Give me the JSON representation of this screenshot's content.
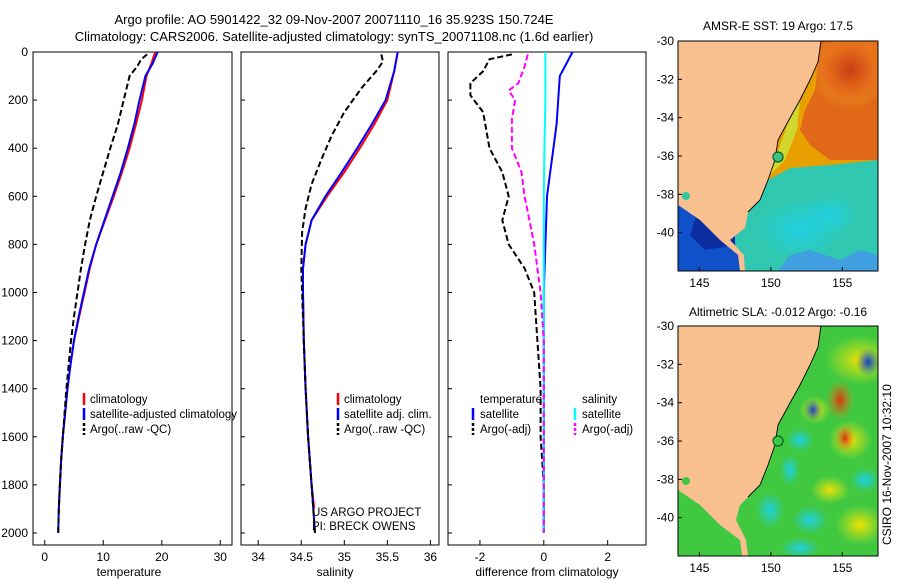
{
  "header": {
    "line1": "Argo profile: AO 5901422_32 09-Nov-2007 20071110_16 35.923S 150.724E",
    "line2": "Climatology: CARS2006. Satellite-adjusted climatology: synTS_20071108.nc (1.6d earlier)"
  },
  "side_stamp": "CSIRO 16-Nov-2007 10:32:10",
  "colors": {
    "climatology": "#ff0000",
    "satellite": "#0000ff",
    "argo": "#000000",
    "salinity_satellite": "#00ffff",
    "salinity_argo": "#ff00ff",
    "land": "#f7c08e"
  },
  "chart_data": [
    {
      "type": "line",
      "xlabel": "temperature",
      "xlim": [
        -2,
        32
      ],
      "ylim": [
        2050,
        0
      ],
      "xticks": [
        "0",
        "10",
        "20",
        "30"
      ],
      "yticks": [
        "0",
        "200",
        "400",
        "600",
        "800",
        "1000",
        "1200",
        "1400",
        "1600",
        "1800",
        "2000"
      ],
      "legend": [
        "climatology",
        "satellite-adjusted climatology",
        "Argo(..raw -QC)"
      ],
      "series": [
        {
          "name": "climatology",
          "points": [
            [
              18.9,
              0
            ],
            [
              18.2,
              50
            ],
            [
              17.4,
              100
            ],
            [
              16.6,
              200
            ],
            [
              15.6,
              300
            ],
            [
              14.5,
              400
            ],
            [
              13.2,
              500
            ],
            [
              11.8,
              600
            ],
            [
              10.3,
              700
            ],
            [
              8.8,
              800
            ],
            [
              7.7,
              900
            ],
            [
              6.8,
              1000
            ],
            [
              5.9,
              1100
            ],
            [
              5.0,
              1200
            ],
            [
              4.4,
              1300
            ],
            [
              3.9,
              1400
            ],
            [
              3.5,
              1500
            ],
            [
              3.1,
              1600
            ],
            [
              2.8,
              1700
            ],
            [
              2.6,
              1800
            ],
            [
              2.4,
              1900
            ]
          ]
        },
        {
          "name": "satellite-adjusted climatology",
          "points": [
            [
              19.3,
              0
            ],
            [
              18.4,
              50
            ],
            [
              17.2,
              100
            ],
            [
              16.2,
              200
            ],
            [
              15.3,
              300
            ],
            [
              14.2,
              400
            ],
            [
              13.0,
              500
            ],
            [
              11.6,
              600
            ],
            [
              10.2,
              700
            ],
            [
              8.8,
              800
            ],
            [
              7.6,
              900
            ],
            [
              6.7,
              1000
            ],
            [
              5.8,
              1100
            ],
            [
              5.0,
              1200
            ],
            [
              4.4,
              1300
            ],
            [
              3.9,
              1400
            ],
            [
              3.5,
              1500
            ],
            [
              3.1,
              1600
            ],
            [
              2.8,
              1700
            ],
            [
              2.6,
              1800
            ],
            [
              2.4,
              1900
            ],
            [
              2.3,
              2000
            ]
          ]
        },
        {
          "name": "Argo(..raw -QC)",
          "points": [
            [
              17.5,
              10
            ],
            [
              16.5,
              30
            ],
            [
              15.8,
              60
            ],
            [
              14.5,
              100
            ],
            [
              13.5,
              200
            ],
            [
              12.5,
              300
            ],
            [
              11.2,
              400
            ],
            [
              10.0,
              500
            ],
            [
              8.8,
              600
            ],
            [
              7.7,
              700
            ],
            [
              6.9,
              800
            ],
            [
              6.2,
              900
            ],
            [
              5.6,
              1000
            ],
            [
              5.0,
              1100
            ],
            [
              4.5,
              1200
            ],
            [
              4.1,
              1300
            ],
            [
              3.7,
              1400
            ],
            [
              3.4,
              1500
            ],
            [
              3.1,
              1600
            ],
            [
              2.8,
              1700
            ],
            [
              2.6,
              1800
            ],
            [
              2.4,
              1900
            ],
            [
              2.3,
              2000
            ]
          ]
        }
      ]
    },
    {
      "type": "line",
      "xlabel": "salinity",
      "xlim": [
        33.8,
        36.1
      ],
      "ylim": [
        2050,
        0
      ],
      "xticks": [
        "34",
        "34.5",
        "35",
        "35.5",
        "36"
      ],
      "legend": [
        "climatology",
        "satellite adj. clim.",
        "Argo(..raw -QC)"
      ],
      "annotation": [
        "US ARGO PROJECT",
        "PI: BRECK OWENS"
      ],
      "series": [
        {
          "name": "climatology",
          "points": [
            [
              35.62,
              0
            ],
            [
              35.58,
              80
            ],
            [
              35.5,
              200
            ],
            [
              35.35,
              300
            ],
            [
              35.18,
              400
            ],
            [
              35.0,
              500
            ],
            [
              34.8,
              600
            ],
            [
              34.62,
              700
            ],
            [
              34.55,
              800
            ],
            [
              34.52,
              900
            ],
            [
              34.52,
              1000
            ],
            [
              34.53,
              1200
            ],
            [
              34.55,
              1400
            ],
            [
              34.58,
              1600
            ],
            [
              34.62,
              1800
            ],
            [
              34.65,
              1900
            ]
          ]
        },
        {
          "name": "satellite adj. clim.",
          "points": [
            [
              35.62,
              0
            ],
            [
              35.58,
              80
            ],
            [
              35.48,
              200
            ],
            [
              35.32,
              300
            ],
            [
              35.15,
              400
            ],
            [
              34.97,
              500
            ],
            [
              34.78,
              600
            ],
            [
              34.62,
              700
            ],
            [
              34.55,
              800
            ],
            [
              34.52,
              900
            ],
            [
              34.52,
              1000
            ],
            [
              34.53,
              1200
            ],
            [
              34.55,
              1400
            ],
            [
              34.58,
              1600
            ],
            [
              34.62,
              1800
            ],
            [
              34.66,
              2000
            ]
          ]
        },
        {
          "name": "Argo(..raw -QC)",
          "points": [
            [
              35.43,
              10
            ],
            [
              35.45,
              40
            ],
            [
              35.37,
              80
            ],
            [
              35.2,
              150
            ],
            [
              35.0,
              250
            ],
            [
              34.85,
              350
            ],
            [
              34.73,
              450
            ],
            [
              34.62,
              550
            ],
            [
              34.55,
              650
            ],
            [
              34.51,
              750
            ],
            [
              34.5,
              900
            ],
            [
              34.51,
              1000
            ],
            [
              34.53,
              1200
            ],
            [
              34.55,
              1400
            ],
            [
              34.58,
              1600
            ],
            [
              34.62,
              1800
            ],
            [
              34.66,
              2000
            ]
          ]
        }
      ]
    },
    {
      "type": "line",
      "xlabel": "difference from climatology",
      "xlim": [
        -3,
        3.2
      ],
      "ylim": [
        2050,
        0
      ],
      "xticks": [
        "-2",
        "0",
        "2"
      ],
      "legend": [
        "temperature",
        "satellite",
        "Argo(-adj)",
        "salinity",
        "satellite",
        "Argo(-adj)"
      ],
      "series": [
        {
          "name": "temperature satellite",
          "points": [
            [
              0.9,
              0
            ],
            [
              0.7,
              50
            ],
            [
              0.5,
              100
            ],
            [
              0.45,
              200
            ],
            [
              0.4,
              300
            ],
            [
              0.3,
              400
            ],
            [
              0.2,
              500
            ],
            [
              0.1,
              600
            ],
            [
              0.05,
              800
            ],
            [
              0.0,
              1000
            ],
            [
              0.0,
              1500
            ],
            [
              0.0,
              2000
            ]
          ]
        },
        {
          "name": "temperature Argo(-adj)",
          "points": [
            [
              -1.0,
              10
            ],
            [
              -1.7,
              30
            ],
            [
              -1.9,
              80
            ],
            [
              -2.3,
              130
            ],
            [
              -2.3,
              180
            ],
            [
              -1.9,
              250
            ],
            [
              -1.7,
              400
            ],
            [
              -1.3,
              500
            ],
            [
              -1.1,
              600
            ],
            [
              -1.3,
              700
            ],
            [
              -1.1,
              800
            ],
            [
              -0.6,
              900
            ],
            [
              -0.3,
              1000
            ],
            [
              -0.2,
              1200
            ],
            [
              -0.1,
              1400
            ],
            [
              -0.1,
              1600
            ],
            [
              0.0,
              1800
            ],
            [
              0.0,
              2000
            ]
          ]
        },
        {
          "name": "salinity satellite",
          "points": [
            [
              0.05,
              0
            ],
            [
              0.05,
              200
            ],
            [
              0.02,
              400
            ],
            [
              0.0,
              600
            ],
            [
              0.0,
              1000
            ],
            [
              0.0,
              1500
            ],
            [
              0.0,
              2000
            ]
          ]
        },
        {
          "name": "salinity Argo(-adj)",
          "points": [
            [
              -0.5,
              10
            ],
            [
              -0.6,
              60
            ],
            [
              -0.8,
              130
            ],
            [
              -1.1,
              160
            ],
            [
              -0.9,
              200
            ],
            [
              -1.0,
              280
            ],
            [
              -1.0,
              400
            ],
            [
              -0.7,
              500
            ],
            [
              -0.6,
              600
            ],
            [
              -0.45,
              700
            ],
            [
              -0.3,
              800
            ],
            [
              -0.2,
              900
            ],
            [
              -0.1,
              1000
            ],
            [
              0.0,
              1200
            ],
            [
              0.0,
              1500
            ],
            [
              0.0,
              2000
            ]
          ]
        }
      ]
    },
    {
      "type": "heatmap",
      "title": "AMSR-E SST: 19 Argo: 17.5",
      "xticks": [
        "145",
        "150",
        "155"
      ],
      "yticks": [
        "-30",
        "-32",
        "-34",
        "-36",
        "-38",
        "-40"
      ],
      "xlim": [
        143.5,
        157.5
      ],
      "ylim": [
        -42,
        -30
      ]
    },
    {
      "type": "heatmap",
      "title": "Altimetric SLA: -0.012 Argo: -0.16",
      "xticks": [
        "145",
        "150",
        "155"
      ],
      "yticks": [
        "-30",
        "-32",
        "-34",
        "-36",
        "-38",
        "-40"
      ],
      "xlim": [
        143.5,
        157.5
      ],
      "ylim": [
        -42,
        -30
      ]
    }
  ]
}
